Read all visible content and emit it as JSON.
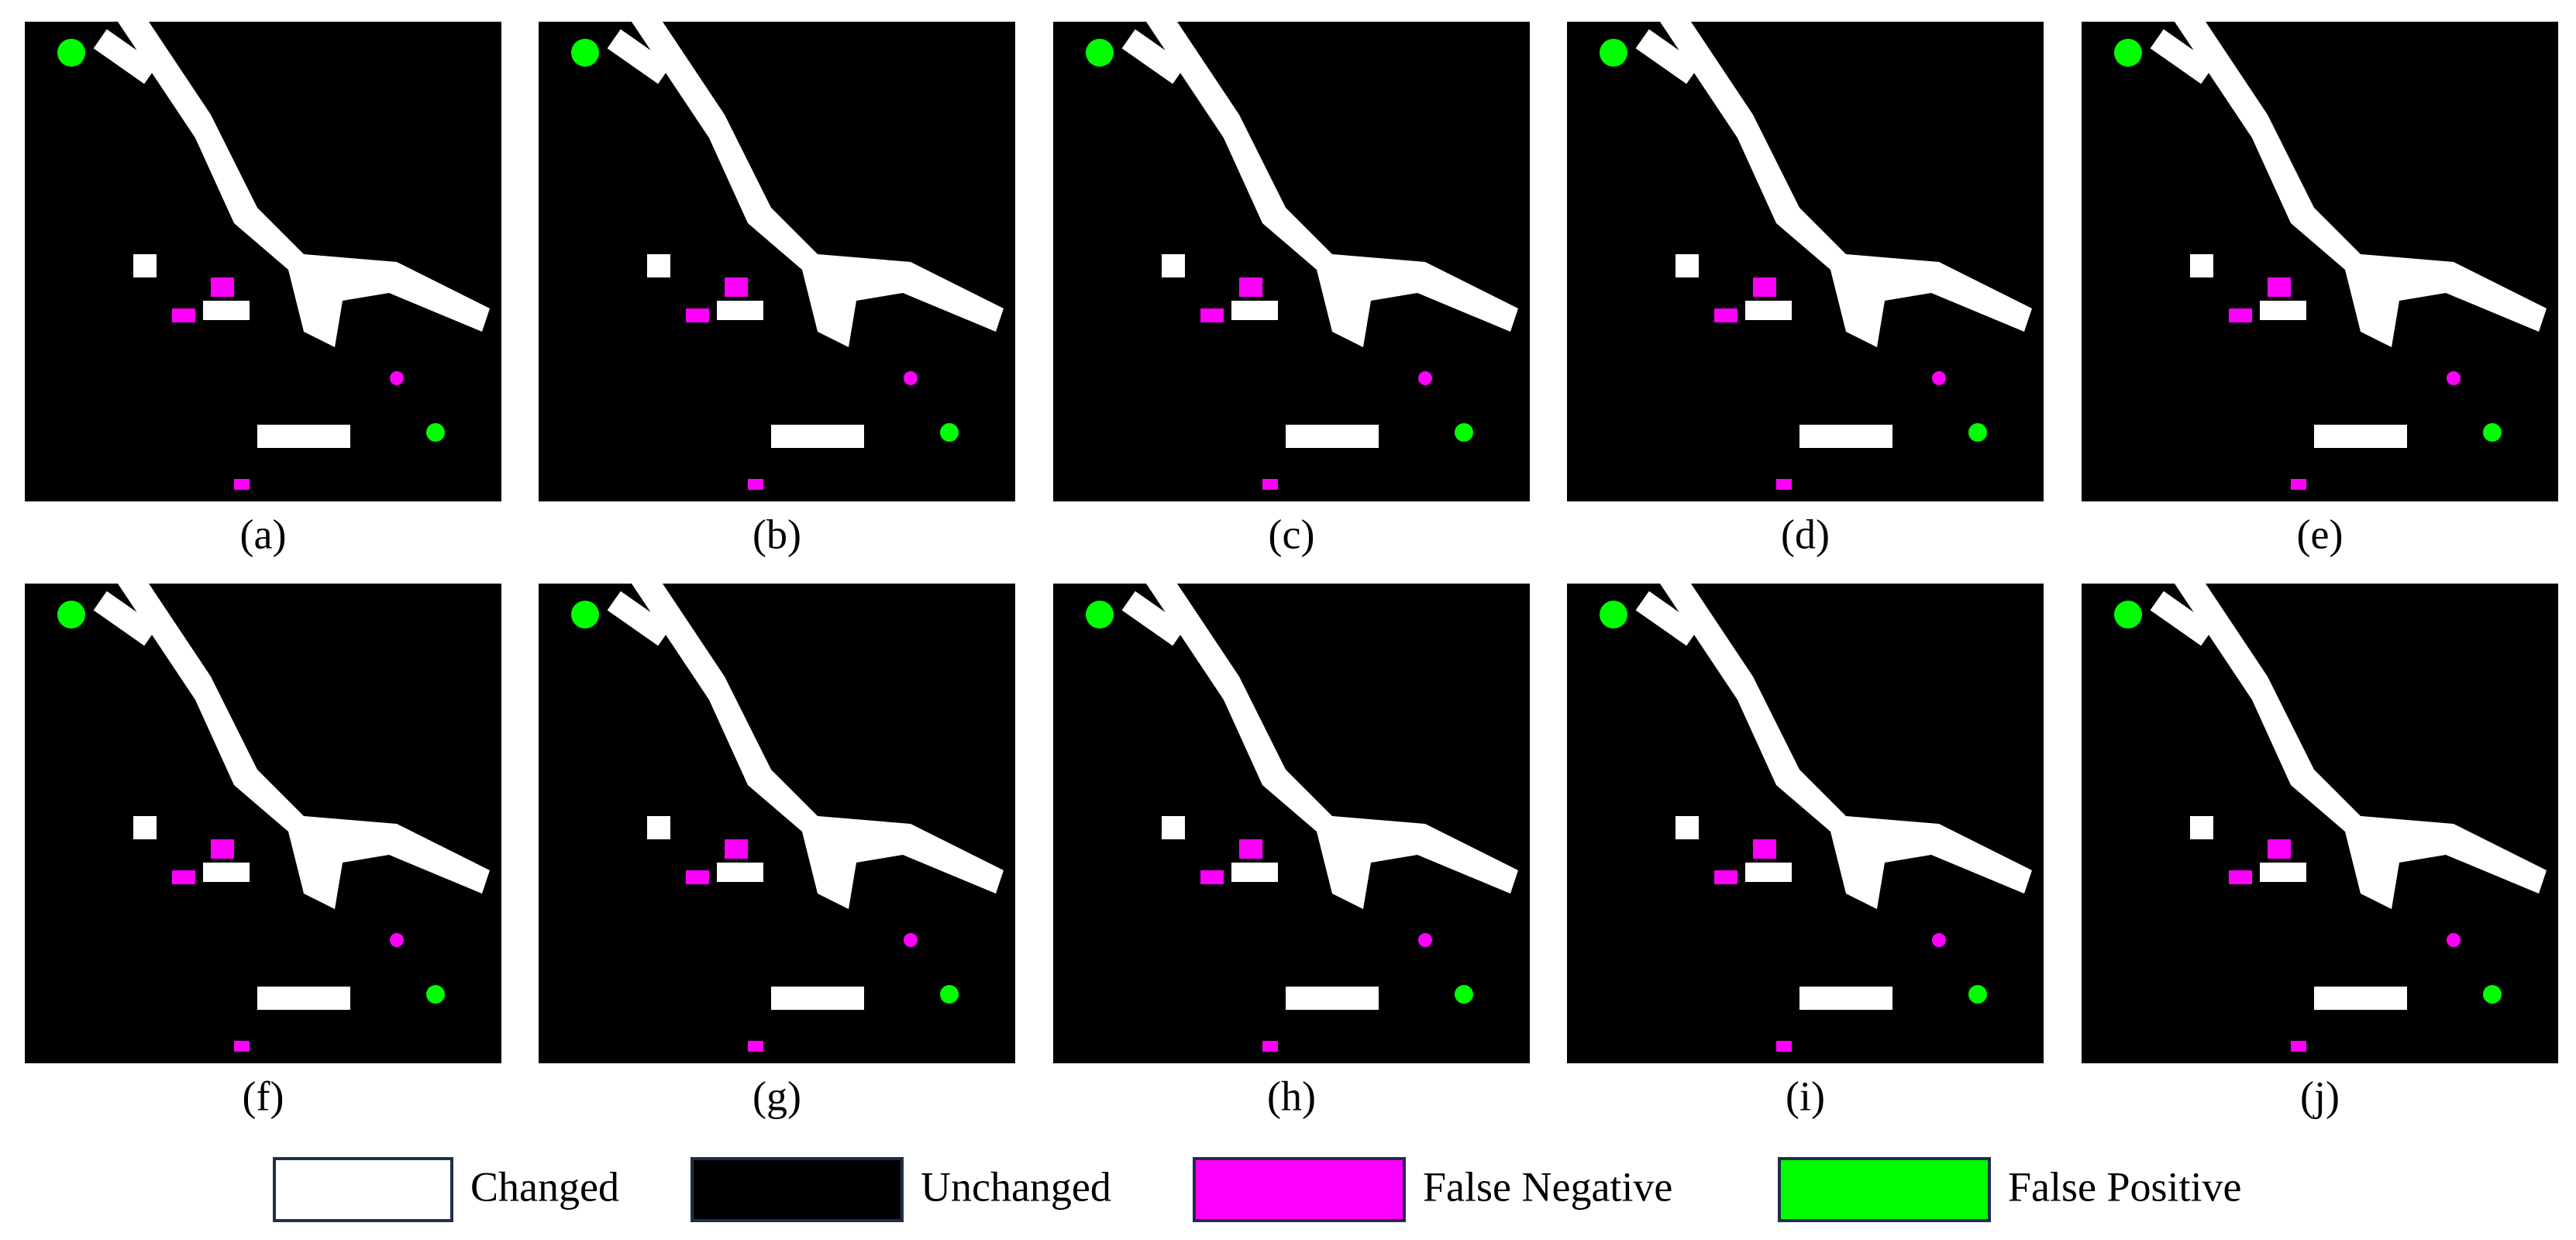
{
  "panels": [
    {
      "caption": "(a)"
    },
    {
      "caption": "(b)"
    },
    {
      "caption": "(c)"
    },
    {
      "caption": "(d)"
    },
    {
      "caption": "(e)"
    },
    {
      "caption": "(f)"
    },
    {
      "caption": "(g)"
    },
    {
      "caption": "(h)"
    },
    {
      "caption": "(i)"
    },
    {
      "caption": "(j)"
    }
  ],
  "legend": [
    {
      "label": "Changed",
      "color": "#ffffff"
    },
    {
      "label": "Unchanged",
      "color": "#000000"
    },
    {
      "label": "False Negative",
      "color": "#ff00ff"
    },
    {
      "label": "False Positive",
      "color": "#00ff00"
    }
  ]
}
